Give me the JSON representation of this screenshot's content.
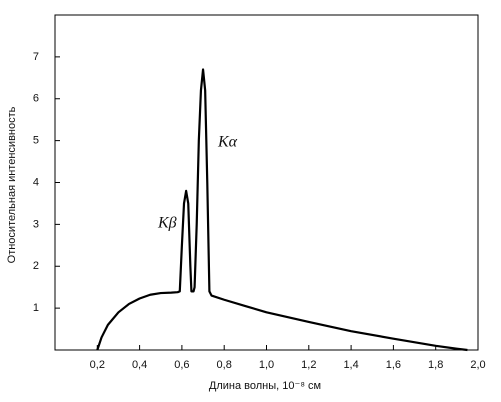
{
  "chart_data": {
    "type": "line",
    "x_label": "Длина волны, 10⁻⁸ см",
    "y_label": "Относительная интенсивность",
    "annotations": [
      "Kα",
      "Kβ"
    ],
    "x": [
      0.2,
      0.22,
      0.25,
      0.3,
      0.35,
      0.4,
      0.45,
      0.5,
      0.55,
      0.58,
      0.59,
      0.6,
      0.61,
      0.62,
      0.63,
      0.64,
      0.645,
      0.655,
      0.66,
      0.67,
      0.68,
      0.69,
      0.7,
      0.71,
      0.72,
      0.73,
      0.74,
      0.8,
      0.9,
      1.0,
      1.2,
      1.4,
      1.6,
      1.8,
      1.9,
      1.95
    ],
    "values": [
      0,
      0.3,
      0.6,
      0.9,
      1.1,
      1.23,
      1.32,
      1.36,
      1.37,
      1.38,
      1.4,
      2.5,
      3.5,
      3.8,
      3.5,
      2.0,
      1.4,
      1.4,
      1.5,
      3.0,
      5.0,
      6.2,
      6.7,
      6.2,
      4.0,
      1.4,
      1.3,
      1.2,
      1.05,
      0.9,
      0.67,
      0.45,
      0.27,
      0.1,
      0.03,
      0
    ],
    "color": "#000000",
    "xlim": [
      0,
      2.0
    ],
    "ylim": [
      0,
      8
    ],
    "xticks": [
      {
        "value": 0.2,
        "label": "0,2"
      },
      {
        "value": 0.4,
        "label": "0,4"
      },
      {
        "value": 0.6,
        "label": "0,6"
      },
      {
        "value": 0.8,
        "label": "0,8"
      },
      {
        "value": 1.0,
        "label": "1,0"
      },
      {
        "value": 1.2,
        "label": "1,2"
      },
      {
        "value": 1.4,
        "label": "1,4"
      },
      {
        "value": 1.6,
        "label": "1,6"
      },
      {
        "value": 1.8,
        "label": "1,8"
      },
      {
        "value": 2.0,
        "label": "2,0"
      }
    ],
    "yticks": [
      1,
      2,
      3,
      4,
      5,
      6,
      7
    ],
    "grid": false
  }
}
